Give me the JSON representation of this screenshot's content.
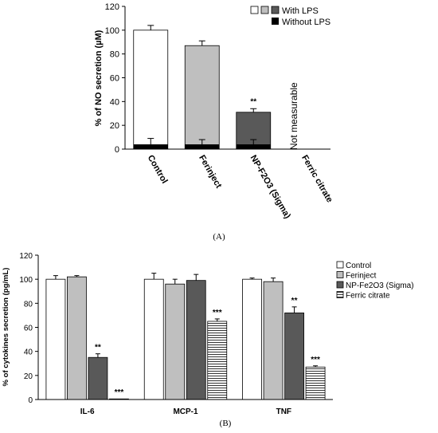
{
  "chart_data": [
    {
      "type": "bar",
      "panel_label": "(A)",
      "ylabel": "% of NO secretion (µM)",
      "ylim": [
        0,
        120
      ],
      "yticks": [
        "0",
        "20",
        "40",
        "60",
        "80",
        "100",
        "120"
      ],
      "categories": [
        "Control",
        "Ferinject",
        "NP-F2O3 (Sigma)",
        "Ferric citrate"
      ],
      "legend": [
        "With LPS",
        "Without LPS"
      ],
      "series": [
        {
          "name": "With LPS",
          "values": [
            100,
            87,
            31,
            null
          ],
          "errors": [
            4,
            4,
            3,
            null
          ],
          "colors": [
            "#ffffff",
            "#bfbfbf",
            "#595959",
            null
          ]
        },
        {
          "name": "Without LPS",
          "values": [
            4,
            4,
            4,
            null
          ],
          "errors": [
            5,
            4,
            4,
            null
          ],
          "colors": [
            "#000000",
            "#000000",
            "#000000",
            null
          ]
        }
      ],
      "annotations": [
        {
          "category": "NP-F2O3 (Sigma)",
          "text": "**"
        },
        {
          "category": "Ferric citrate",
          "text": "Not measurable"
        }
      ]
    },
    {
      "type": "bar",
      "panel_label": "(B)",
      "ylabel": "% of cytokines secretion (pg/mL)",
      "ylim": [
        0,
        120
      ],
      "yticks": [
        "0",
        "20",
        "40",
        "60",
        "80",
        "100",
        "120"
      ],
      "categories": [
        "IL-6",
        "MCP-1",
        "TNF"
      ],
      "series": [
        {
          "name": "Control",
          "values": [
            100,
            100,
            100
          ],
          "errors": [
            3,
            5,
            1
          ],
          "color": "#ffffff"
        },
        {
          "name": "Ferinject",
          "values": [
            102,
            96,
            98
          ],
          "errors": [
            1,
            4,
            3
          ],
          "color": "#bfbfbf"
        },
        {
          "name": "NP-Fe2O3  (Sigma)",
          "values": [
            35,
            99,
            72
          ],
          "errors": [
            3,
            5,
            5
          ],
          "color": "#595959"
        },
        {
          "name": "Ferric citrate",
          "values": [
            0.5,
            65,
            27
          ],
          "errors": [
            0,
            2,
            1
          ],
          "color": "#ffffff",
          "pattern": "hlines"
        }
      ],
      "annotations": [
        {
          "category": "IL-6",
          "series": "NP-Fe2O3  (Sigma)",
          "text": "**"
        },
        {
          "category": "IL-6",
          "series": "Ferric citrate",
          "text": "***"
        },
        {
          "category": "MCP-1",
          "series": "Ferric citrate",
          "text": "***"
        },
        {
          "category": "TNF",
          "series": "NP-Fe2O3  (Sigma)",
          "text": "**"
        },
        {
          "category": "TNF",
          "series": "Ferric citrate",
          "text": "***"
        }
      ]
    }
  ]
}
